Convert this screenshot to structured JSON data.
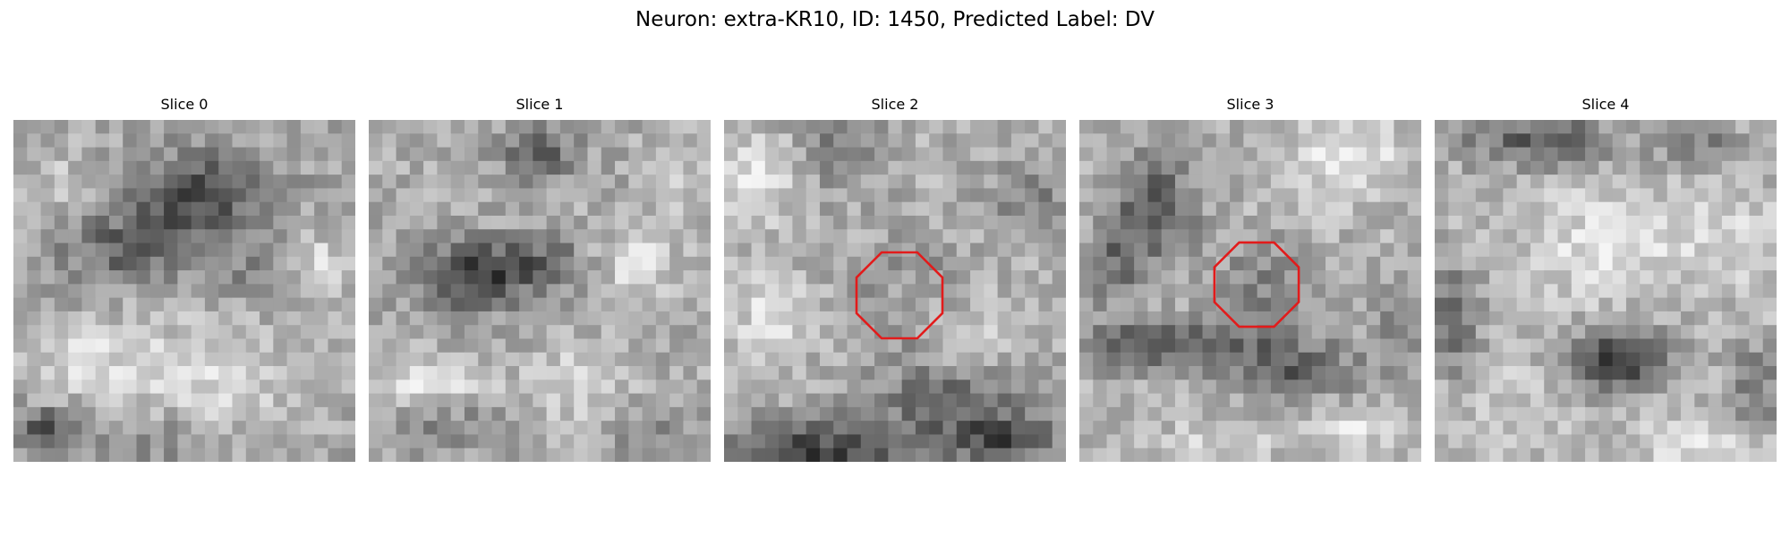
{
  "figure": {
    "title": "Neuron: extra-KR10, ID: 1450, Predicted Label: DV"
  },
  "colors": {
    "background": "#ffffff",
    "roi_outline": "#e21b1b",
    "colormap": "grayscale"
  },
  "slices": [
    {
      "title": "Slice 0",
      "has_roi_outline": false,
      "content": "grayscale microscopy crop with a dark diagonal band across the upper middle and bright textured regions below"
    },
    {
      "title": "Slice 1",
      "has_roi_outline": false,
      "content": "grayscale microscopy crop with a dark elongated blob left of center on a bright textured field"
    },
    {
      "title": "Slice 2",
      "has_roi_outline": true,
      "content": "grayscale microscopy crop with a bright round cell body encircled by a darker ring, a dark oblique band in the lower part"
    },
    {
      "title": "Slice 3",
      "has_roi_outline": true,
      "content": "grayscale microscopy crop with a small dark ring structure at center, dark band across the lower third"
    },
    {
      "title": "Slice 4",
      "has_roi_outline": false,
      "content": "grayscale microscopy crop with a dark blob right of center in the lower half and bright texture above"
    }
  ]
}
